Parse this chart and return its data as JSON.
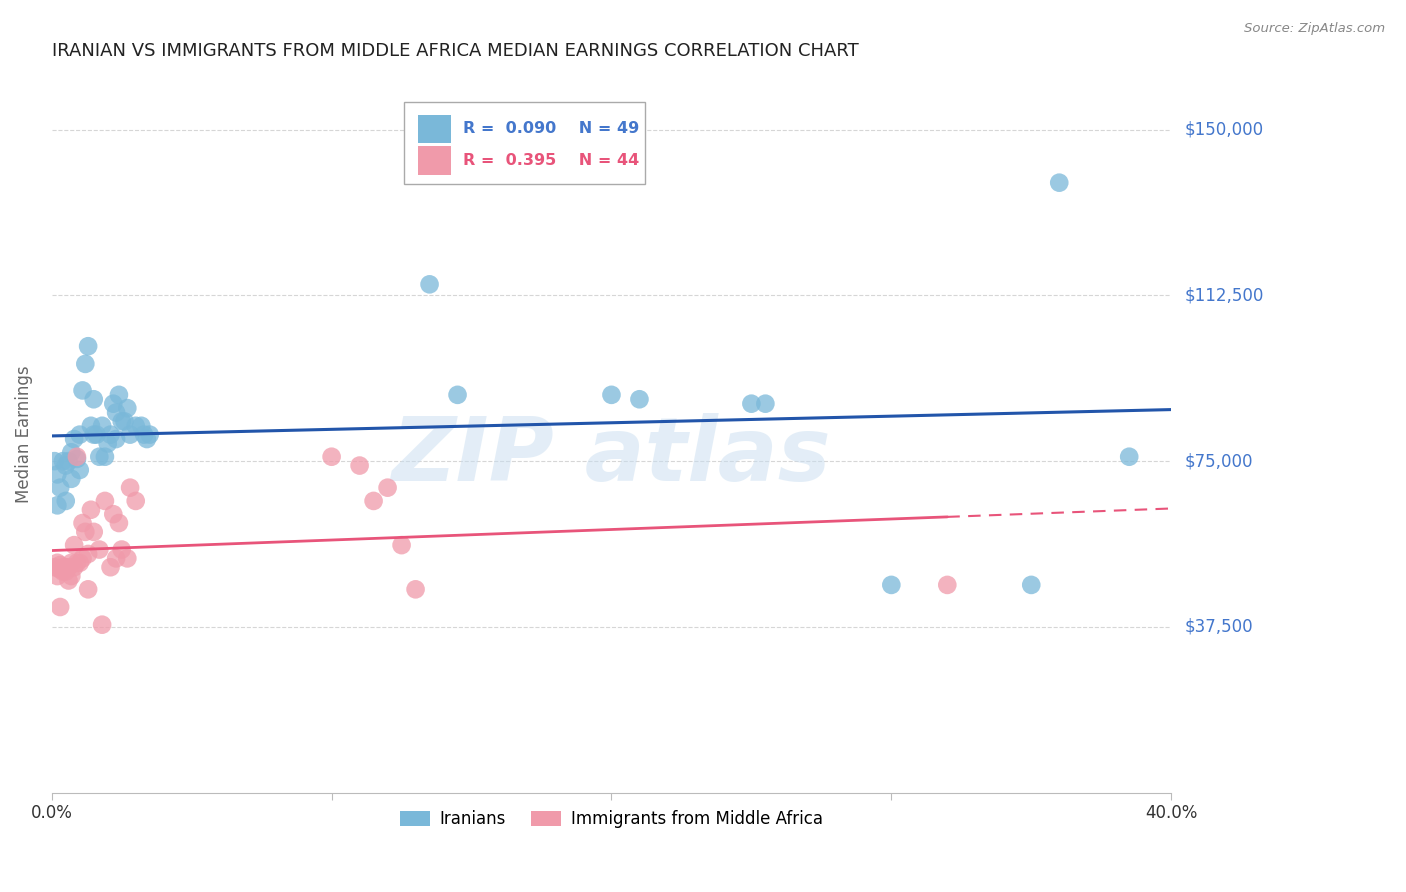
{
  "title": "IRANIAN VS IMMIGRANTS FROM MIDDLE AFRICA MEDIAN EARNINGS CORRELATION CHART",
  "source": "Source: ZipAtlas.com",
  "ylabel": "Median Earnings",
  "watermark": "ZIPatlas",
  "y_ticks": [
    0,
    37500,
    75000,
    112500,
    150000
  ],
  "y_tick_labels": [
    "",
    "$37,500",
    "$75,000",
    "$112,500",
    "$150,000"
  ],
  "x_min": 0.0,
  "x_max": 0.4,
  "y_min": 0,
  "y_max": 162000,
  "legend_blue_R": "0.090",
  "legend_blue_N": "49",
  "legend_pink_R": "0.395",
  "legend_pink_N": "44",
  "blue_color": "#7ab8d9",
  "pink_color": "#f09aaa",
  "blue_line_color": "#2255aa",
  "pink_line_color": "#e8547a",
  "blue_scatter": [
    [
      0.001,
      75000
    ],
    [
      0.002,
      72000
    ],
    [
      0.003,
      69000
    ],
    [
      0.004,
      75000
    ],
    [
      0.005,
      74000
    ],
    [
      0.005,
      66000
    ],
    [
      0.006,
      75000
    ],
    [
      0.007,
      77000
    ],
    [
      0.007,
      71000
    ],
    [
      0.008,
      80000
    ],
    [
      0.009,
      75500
    ],
    [
      0.01,
      81000
    ],
    [
      0.01,
      73000
    ],
    [
      0.011,
      91000
    ],
    [
      0.012,
      97000
    ],
    [
      0.013,
      101000
    ],
    [
      0.014,
      83000
    ],
    [
      0.015,
      89000
    ],
    [
      0.015,
      81000
    ],
    [
      0.016,
      81000
    ],
    [
      0.017,
      76000
    ],
    [
      0.018,
      83000
    ],
    [
      0.019,
      76000
    ],
    [
      0.02,
      79000
    ],
    [
      0.021,
      81000
    ],
    [
      0.022,
      88000
    ],
    [
      0.023,
      86000
    ],
    [
      0.023,
      80000
    ],
    [
      0.024,
      90000
    ],
    [
      0.025,
      84000
    ],
    [
      0.026,
      84000
    ],
    [
      0.027,
      87000
    ],
    [
      0.028,
      81000
    ],
    [
      0.03,
      83000
    ],
    [
      0.032,
      83000
    ],
    [
      0.033,
      81000
    ],
    [
      0.034,
      80000
    ],
    [
      0.035,
      81000
    ],
    [
      0.135,
      115000
    ],
    [
      0.145,
      90000
    ],
    [
      0.2,
      90000
    ],
    [
      0.21,
      89000
    ],
    [
      0.25,
      88000
    ],
    [
      0.255,
      88000
    ],
    [
      0.3,
      47000
    ],
    [
      0.35,
      47000
    ],
    [
      0.36,
      138000
    ],
    [
      0.385,
      76000
    ],
    [
      0.002,
      65000
    ]
  ],
  "pink_scatter": [
    [
      0.001,
      51000
    ],
    [
      0.002,
      52000
    ],
    [
      0.002,
      49000
    ],
    [
      0.003,
      51500
    ],
    [
      0.003,
      50500
    ],
    [
      0.004,
      51000
    ],
    [
      0.004,
      50000
    ],
    [
      0.005,
      51000
    ],
    [
      0.005,
      50000
    ],
    [
      0.006,
      51000
    ],
    [
      0.006,
      48000
    ],
    [
      0.007,
      52000
    ],
    [
      0.007,
      49000
    ],
    [
      0.008,
      51000
    ],
    [
      0.008,
      56000
    ],
    [
      0.009,
      52000
    ],
    [
      0.009,
      76000
    ],
    [
      0.01,
      52000
    ],
    [
      0.011,
      53000
    ],
    [
      0.011,
      61000
    ],
    [
      0.012,
      59000
    ],
    [
      0.013,
      54000
    ],
    [
      0.013,
      46000
    ],
    [
      0.014,
      64000
    ],
    [
      0.015,
      59000
    ],
    [
      0.017,
      55000
    ],
    [
      0.018,
      38000
    ],
    [
      0.019,
      66000
    ],
    [
      0.021,
      51000
    ],
    [
      0.022,
      63000
    ],
    [
      0.023,
      53000
    ],
    [
      0.024,
      61000
    ],
    [
      0.025,
      55000
    ],
    [
      0.027,
      53000
    ],
    [
      0.028,
      69000
    ],
    [
      0.03,
      66000
    ],
    [
      0.1,
      76000
    ],
    [
      0.11,
      74000
    ],
    [
      0.115,
      66000
    ],
    [
      0.12,
      69000
    ],
    [
      0.125,
      56000
    ],
    [
      0.13,
      46000
    ],
    [
      0.32,
      47000
    ],
    [
      0.003,
      42000
    ]
  ],
  "background_color": "#ffffff",
  "grid_color": "#cccccc",
  "title_color": "#222222",
  "tick_label_color": "#4477cc",
  "axis_label_color": "#666666",
  "x_tick_vals": [
    0.0,
    0.1,
    0.2,
    0.3,
    0.4
  ],
  "x_tick_labels_show": [
    "0.0%",
    "",
    "",
    "",
    "40.0%"
  ]
}
